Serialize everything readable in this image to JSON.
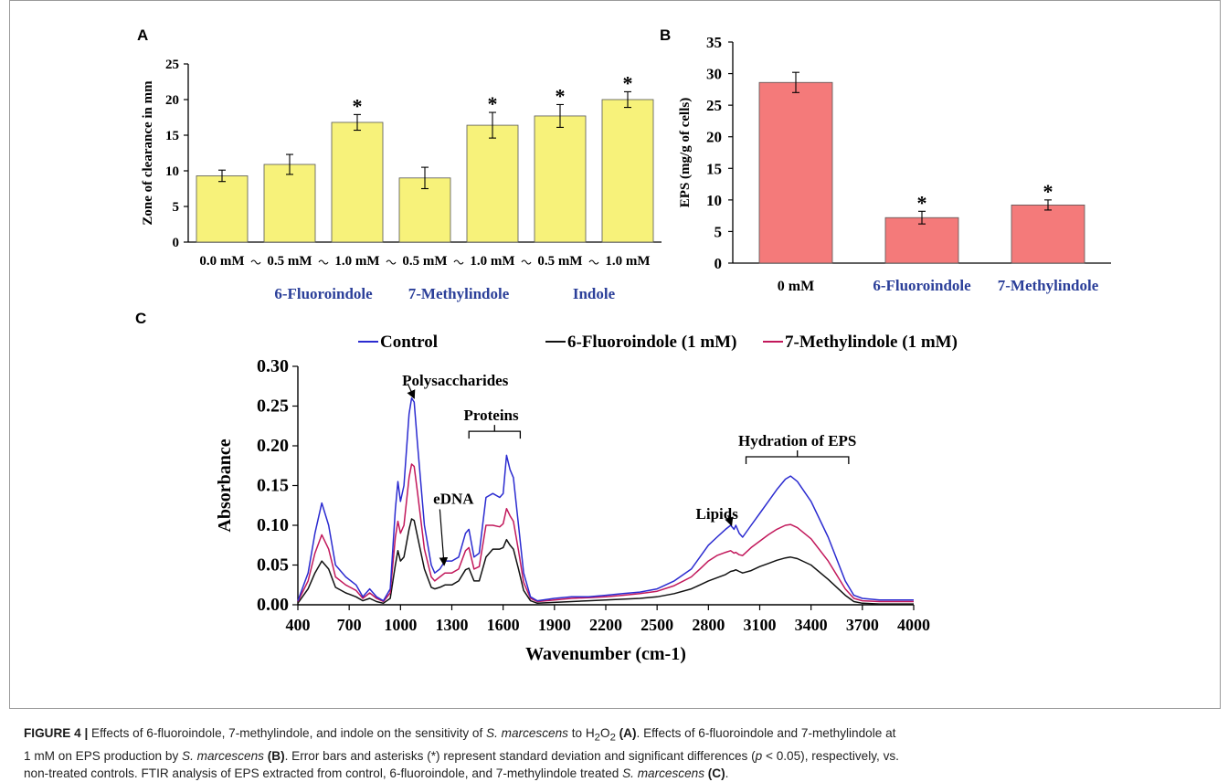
{
  "chart_data": [
    {
      "panel": "A",
      "type": "bar",
      "ylabel": "Zone of clearance  in mm",
      "yticks": [
        0,
        5,
        10,
        15,
        20,
        25
      ],
      "ylim": [
        0,
        25
      ],
      "bar_color": "#f7f27a",
      "categories": [
        "0.0 mM",
        "0.5 mM",
        "1.0 mM",
        "0.5 mM",
        "1.0 mM",
        "0.5 mM",
        "1.0 mM"
      ],
      "values": [
        9.3,
        10.9,
        16.8,
        9.0,
        16.4,
        17.7,
        20.0
      ],
      "errors": [
        0.8,
        1.4,
        1.1,
        1.5,
        1.8,
        1.6,
        1.1
      ],
      "significant": [
        "",
        "",
        "*",
        "",
        "*",
        "*",
        "*"
      ],
      "groups": [
        {
          "label": "6-Fluoroindole",
          "from": 1,
          "to": 2
        },
        {
          "label": "7-Methylindole",
          "from": 3,
          "to": 4
        },
        {
          "label": "Indole",
          "from": 5,
          "to": 6
        }
      ]
    },
    {
      "panel": "B",
      "type": "bar",
      "ylabel": "EPS (mg/g of cells)",
      "yticks": [
        0,
        5,
        10,
        15,
        20,
        25,
        30,
        35
      ],
      "ylim": [
        0,
        35
      ],
      "bar_color": "#f47a7a",
      "categories": [
        "0 mM",
        "6-Fluoroindole",
        "7-Methylindole"
      ],
      "values": [
        28.6,
        7.2,
        9.2
      ],
      "errors": [
        1.6,
        1.0,
        0.8
      ],
      "significant": [
        "",
        "*",
        "*"
      ]
    },
    {
      "panel": "C",
      "type": "line",
      "xlabel": "Wavenumber (cm-1)",
      "ylabel": "Absorbance",
      "xlim": [
        400,
        4000
      ],
      "ylim": [
        0,
        0.3
      ],
      "xticks": [
        400,
        700,
        1000,
        1300,
        1600,
        1900,
        2200,
        2500,
        2800,
        3100,
        3400,
        3700,
        4000
      ],
      "yticks": [
        "0.00",
        "0.05",
        "0.10",
        "0.15",
        "0.20",
        "0.25",
        "0.30"
      ],
      "legend_position": "top",
      "series": [
        {
          "name": "Control",
          "color": "#2b2bd0",
          "x": [
            400,
            460,
            500,
            540,
            580,
            620,
            680,
            740,
            780,
            820,
            860,
            900,
            940,
            970,
            985,
            1000,
            1020,
            1050,
            1065,
            1080,
            1100,
            1140,
            1180,
            1200,
            1230,
            1260,
            1300,
            1340,
            1380,
            1400,
            1430,
            1460,
            1500,
            1540,
            1580,
            1600,
            1620,
            1640,
            1660,
            1690,
            1720,
            1760,
            1800,
            1900,
            2000,
            2100,
            2200,
            2300,
            2400,
            2500,
            2600,
            2700,
            2750,
            2800,
            2850,
            2900,
            2930,
            2950,
            2960,
            2980,
            3000,
            3050,
            3100,
            3150,
            3200,
            3250,
            3280,
            3320,
            3400,
            3500,
            3600,
            3650,
            3700,
            3800,
            4000
          ],
          "y": [
            0.005,
            0.04,
            0.09,
            0.128,
            0.1,
            0.05,
            0.035,
            0.025,
            0.01,
            0.02,
            0.01,
            0.005,
            0.02,
            0.12,
            0.155,
            0.13,
            0.15,
            0.24,
            0.26,
            0.255,
            0.2,
            0.1,
            0.05,
            0.04,
            0.045,
            0.055,
            0.055,
            0.06,
            0.09,
            0.095,
            0.06,
            0.065,
            0.135,
            0.14,
            0.135,
            0.14,
            0.188,
            0.17,
            0.16,
            0.1,
            0.04,
            0.01,
            0.005,
            0.008,
            0.01,
            0.01,
            0.012,
            0.014,
            0.016,
            0.02,
            0.03,
            0.045,
            0.06,
            0.075,
            0.085,
            0.095,
            0.1,
            0.095,
            0.1,
            0.09,
            0.085,
            0.1,
            0.115,
            0.13,
            0.145,
            0.158,
            0.162,
            0.155,
            0.13,
            0.085,
            0.03,
            0.012,
            0.008,
            0.006,
            0.006
          ]
        },
        {
          "name": "6-Fluoroindole (1 mM)",
          "color": "#111111",
          "x": [
            400,
            460,
            500,
            540,
            580,
            620,
            680,
            740,
            780,
            820,
            860,
            900,
            940,
            970,
            985,
            1000,
            1020,
            1050,
            1065,
            1080,
            1100,
            1140,
            1180,
            1200,
            1230,
            1260,
            1300,
            1340,
            1380,
            1400,
            1430,
            1460,
            1500,
            1540,
            1580,
            1600,
            1620,
            1640,
            1660,
            1690,
            1720,
            1760,
            1800,
            1900,
            2000,
            2100,
            2200,
            2300,
            2400,
            2500,
            2600,
            2700,
            2750,
            2800,
            2850,
            2900,
            2930,
            2950,
            2960,
            2980,
            3000,
            3050,
            3100,
            3150,
            3200,
            3250,
            3280,
            3320,
            3400,
            3500,
            3600,
            3650,
            3700,
            3800,
            4000
          ],
          "y": [
            0.002,
            0.02,
            0.04,
            0.055,
            0.045,
            0.022,
            0.015,
            0.01,
            0.005,
            0.008,
            0.004,
            0.002,
            0.008,
            0.05,
            0.068,
            0.055,
            0.06,
            0.095,
            0.108,
            0.106,
            0.085,
            0.045,
            0.022,
            0.02,
            0.022,
            0.025,
            0.025,
            0.03,
            0.044,
            0.046,
            0.03,
            0.03,
            0.06,
            0.07,
            0.07,
            0.072,
            0.082,
            0.075,
            0.07,
            0.045,
            0.018,
            0.005,
            0.002,
            0.003,
            0.004,
            0.005,
            0.006,
            0.007,
            0.008,
            0.01,
            0.014,
            0.02,
            0.025,
            0.03,
            0.034,
            0.038,
            0.042,
            0.043,
            0.044,
            0.042,
            0.04,
            0.043,
            0.048,
            0.052,
            0.056,
            0.059,
            0.06,
            0.058,
            0.05,
            0.032,
            0.012,
            0.004,
            0.002,
            0.001,
            0.001
          ]
        },
        {
          "name": "7-Methylindole (1 mM)",
          "color": "#c2185b",
          "x": [
            400,
            460,
            500,
            540,
            580,
            620,
            680,
            740,
            780,
            820,
            860,
            900,
            940,
            970,
            985,
            1000,
            1020,
            1050,
            1065,
            1080,
            1100,
            1140,
            1180,
            1200,
            1230,
            1260,
            1300,
            1340,
            1380,
            1400,
            1430,
            1460,
            1500,
            1540,
            1580,
            1600,
            1620,
            1640,
            1660,
            1690,
            1720,
            1760,
            1800,
            1900,
            2000,
            2100,
            2200,
            2300,
            2400,
            2500,
            2600,
            2700,
            2750,
            2800,
            2850,
            2900,
            2930,
            2950,
            2960,
            2980,
            3000,
            3050,
            3100,
            3150,
            3200,
            3250,
            3280,
            3320,
            3400,
            3500,
            3600,
            3650,
            3700,
            3800,
            4000
          ],
          "y": [
            0.004,
            0.03,
            0.065,
            0.088,
            0.07,
            0.035,
            0.025,
            0.018,
            0.008,
            0.015,
            0.008,
            0.004,
            0.015,
            0.085,
            0.105,
            0.09,
            0.1,
            0.16,
            0.177,
            0.174,
            0.14,
            0.07,
            0.035,
            0.03,
            0.035,
            0.04,
            0.04,
            0.045,
            0.068,
            0.072,
            0.045,
            0.048,
            0.1,
            0.1,
            0.098,
            0.102,
            0.121,
            0.112,
            0.105,
            0.068,
            0.028,
            0.008,
            0.004,
            0.006,
            0.008,
            0.009,
            0.01,
            0.012,
            0.014,
            0.017,
            0.024,
            0.035,
            0.045,
            0.055,
            0.062,
            0.066,
            0.068,
            0.065,
            0.066,
            0.063,
            0.062,
            0.072,
            0.08,
            0.088,
            0.095,
            0.1,
            0.101,
            0.097,
            0.083,
            0.055,
            0.02,
            0.008,
            0.005,
            0.004,
            0.004
          ]
        }
      ],
      "annotations": [
        {
          "text": "Polysaccharides",
          "x": 1320,
          "y": 0.276,
          "arrow_to": [
            1080,
            0.26
          ]
        },
        {
          "text": "Proteins",
          "x": 1530,
          "y": 0.232,
          "bracket": [
            1400,
            1700
          ]
        },
        {
          "text": "eDNA",
          "x": 1310,
          "y": 0.127,
          "arrow_to": [
            1255,
            0.05
          ]
        },
        {
          "text": "Lipids",
          "x": 2850,
          "y": 0.108,
          "arrow_to": [
            2935,
            0.1
          ]
        },
        {
          "text": "Hydration of EPS",
          "x": 3320,
          "y": 0.2,
          "bracket": [
            3020,
            3620
          ]
        }
      ]
    }
  ],
  "panel_letters": {
    "a": "A",
    "b": "B",
    "c": "C"
  },
  "caption": {
    "label": "FIGURE 4 |",
    "line1_a": " Effects of 6-fluoroindole, 7-methylindole, and indole on the sensitivity of ",
    "organism": "S. marcescens",
    "line1_b": " to H",
    "sub2": "2",
    "line1_c": "O",
    "line1_d": " ",
    "ref_a": "(A)",
    "line1_e": ". Effects of 6-fluoroindole and 7-methylindole at",
    "line2_a": "1 mM on EPS production by ",
    "line2_b": " ",
    "ref_b": "(B)",
    "line2_c": ". Error bars and asterisks (*) represent standard deviation and significant differences (",
    "p_symbol": "p",
    "line2_d": " < 0.05), respectively, vs.",
    "line3_a": "non-treated controls. FTIR analysis of EPS extracted from control, 6-fluoroindole, and 7-methylindole treated ",
    "line3_b": " ",
    "ref_c": "(C)",
    "line3_c": "."
  }
}
